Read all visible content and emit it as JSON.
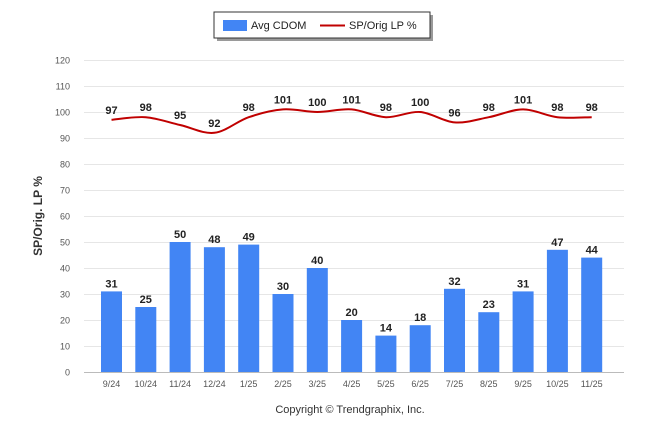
{
  "chart_data": {
    "type": "bar",
    "title": "",
    "xlabel": "",
    "ylabel": "SP/Orig. LP %",
    "ylim": [
      0,
      120
    ],
    "yticks": [
      0,
      10,
      20,
      30,
      40,
      50,
      60,
      70,
      80,
      90,
      100,
      110,
      120
    ],
    "grid": true,
    "legend_position": "top-center",
    "categories": [
      "9/24",
      "10/24",
      "11/24",
      "12/24",
      "1/25",
      "2/25",
      "3/25",
      "4/25",
      "5/25",
      "6/25",
      "7/25",
      "8/25",
      "9/25",
      "10/25",
      "11/25"
    ],
    "series": [
      {
        "name": "Avg CDOM",
        "type": "bar",
        "color": "#4285f4",
        "values": [
          31,
          25,
          50,
          48,
          49,
          30,
          40,
          20,
          14,
          18,
          32,
          23,
          31,
          47,
          44
        ]
      },
      {
        "name": "SP/Orig LP %",
        "type": "line",
        "color": "#c00000",
        "values": [
          97,
          98,
          95,
          92,
          98,
          101,
          100,
          101,
          98,
          100,
          96,
          98,
          101,
          98,
          98
        ]
      }
    ],
    "annotation": "Copyright © Trendgraphix, Inc."
  }
}
